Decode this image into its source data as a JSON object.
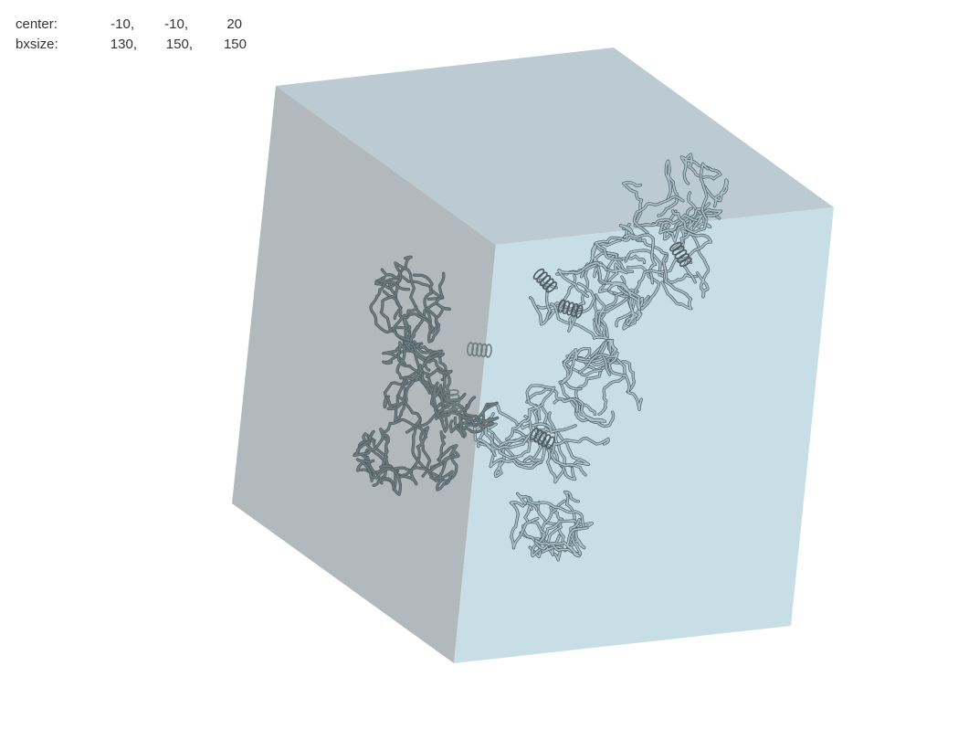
{
  "readout": {
    "center_label": "center:",
    "center": [
      "-10,",
      "-10,",
      "20"
    ],
    "bxsize_label": "bxsize:",
    "bxsize": [
      "130,",
      "150,",
      "150"
    ]
  },
  "scene": {
    "box_faces": {
      "top": "#bccbd2",
      "left": "#b2b9bc",
      "front": "#c8dee6"
    },
    "protein_colors": {
      "inside": "#a9c1cb",
      "outside": "#6e7b80",
      "outline": "#4d5a60"
    }
  }
}
